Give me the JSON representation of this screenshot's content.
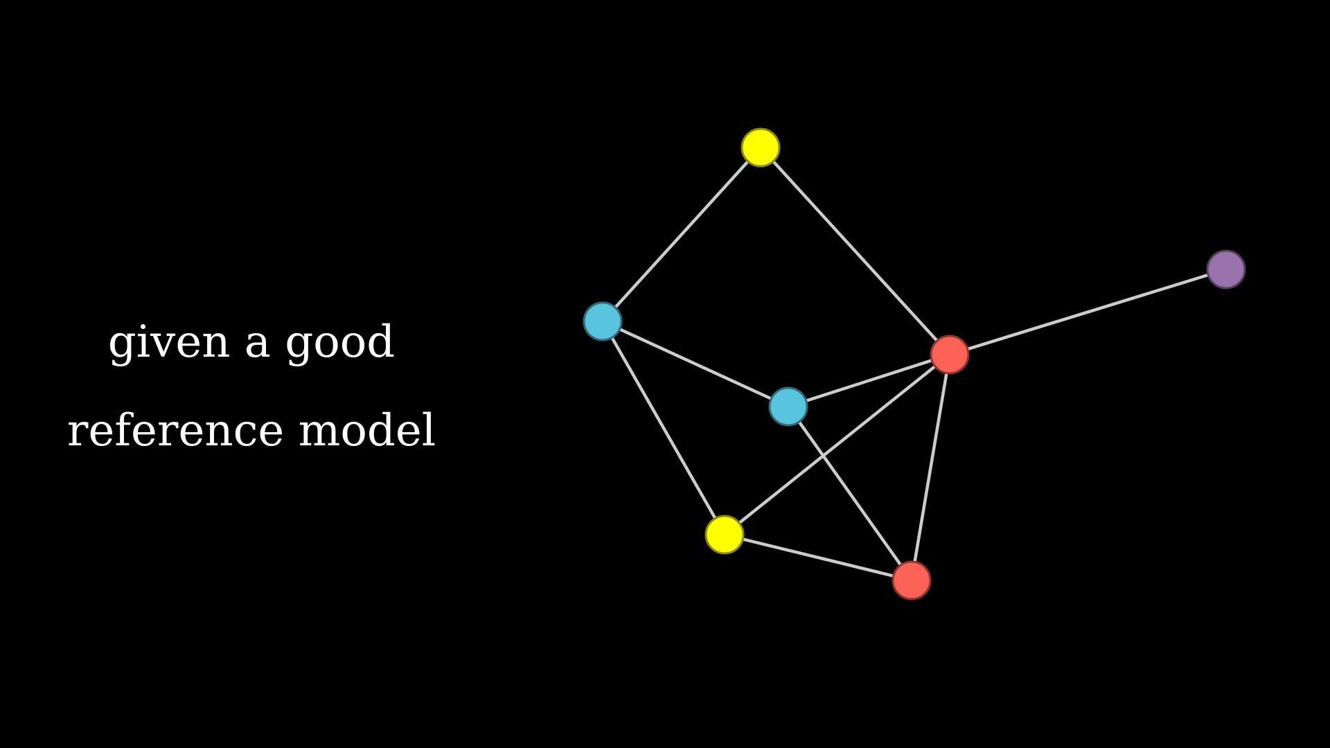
{
  "caption": {
    "line1": "given a good",
    "line2": "reference model"
  },
  "colors": {
    "background": "#000000",
    "text": "#ffffff",
    "edge": "#cccccc",
    "yellow": "#ffff00",
    "blue": "#58c4dd",
    "red": "#fc6255",
    "purple": "#9a72ac"
  },
  "graph": {
    "nodes": [
      {
        "id": "yellow-top",
        "color": "yellow"
      },
      {
        "id": "blue-left",
        "color": "blue"
      },
      {
        "id": "blue-center",
        "color": "blue"
      },
      {
        "id": "red-center",
        "color": "red"
      },
      {
        "id": "yellow-bottom",
        "color": "yellow"
      },
      {
        "id": "red-bottom",
        "color": "red"
      },
      {
        "id": "purple-right",
        "color": "purple"
      }
    ],
    "edges": [
      [
        "yellow-top",
        "blue-left"
      ],
      [
        "yellow-top",
        "red-center"
      ],
      [
        "blue-left",
        "blue-center"
      ],
      [
        "blue-left",
        "yellow-bottom"
      ],
      [
        "blue-center",
        "red-center"
      ],
      [
        "blue-center",
        "red-bottom"
      ],
      [
        "red-center",
        "yellow-bottom"
      ],
      [
        "red-center",
        "red-bottom"
      ],
      [
        "red-center",
        "purple-right"
      ],
      [
        "yellow-bottom",
        "red-bottom"
      ]
    ]
  }
}
